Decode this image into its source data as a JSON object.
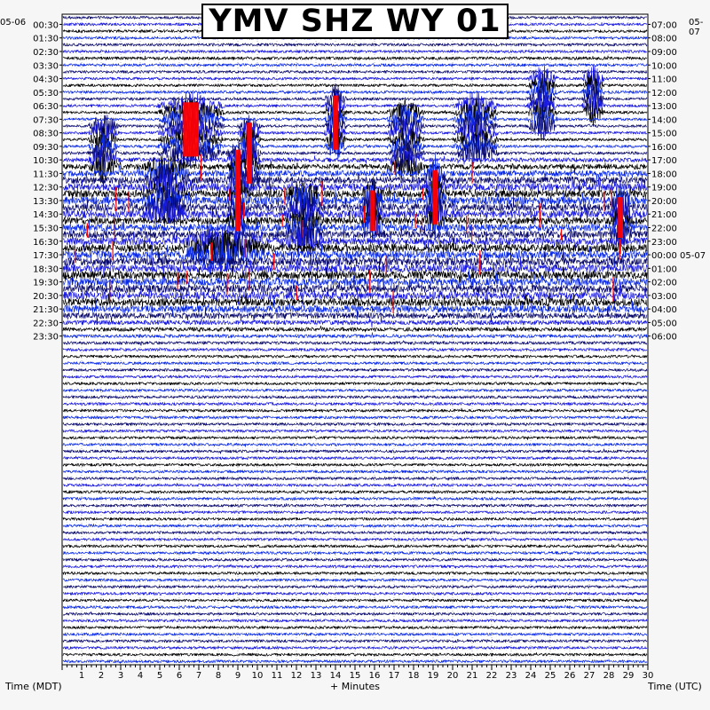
{
  "title": "YMV SHZ WY 01",
  "left_date_label": "05-06",
  "right_date_label": "05-07",
  "left_axis_label": "Time (MDT)",
  "right_axis_label": "Time (UTC)",
  "x_axis_label": "+ Minutes",
  "colors": {
    "trace_colors": [
      "#0b0b6e",
      "#1a1ae0",
      "#000000",
      "#0a2ae8"
    ],
    "clip": "#ff0000",
    "grid": "#000000",
    "background": "#ffffff"
  },
  "chart_data": {
    "type": "line",
    "title": "YMV SHZ WY 01",
    "xlabel": "+ Minutes",
    "xlim": [
      0,
      30
    ],
    "x_ticks": [
      1,
      2,
      3,
      4,
      5,
      6,
      7,
      8,
      9,
      10,
      11,
      12,
      13,
      14,
      15,
      16,
      17,
      18,
      19,
      20,
      21,
      22,
      23,
      24,
      25,
      26,
      27,
      28,
      29,
      30
    ],
    "rows_per_hour": 2,
    "left_tick_labels": [
      "00:30",
      "01:30",
      "02:30",
      "03:30",
      "04:30",
      "05:30",
      "06:30",
      "07:30",
      "08:30",
      "09:30",
      "10:30",
      "11:30",
      "12:30",
      "13:30",
      "14:30",
      "15:30",
      "16:30",
      "17:30",
      "18:30",
      "19:30",
      "20:30",
      "21:30",
      "22:30",
      "23:30"
    ],
    "right_tick_labels": [
      "07:00",
      "08:00",
      "09:00",
      "10:00",
      "11:00",
      "12:00",
      "13:00",
      "14:00",
      "15:00",
      "16:00",
      "17:00",
      "18:00",
      "19:00",
      "20:00",
      "21:00",
      "22:00",
      "23:00",
      "00:00 05-07",
      "01:00",
      "02:00",
      "03:00",
      "04:00",
      "05:00",
      "06:00"
    ],
    "row_activity": [
      0.1,
      0.1,
      0.1,
      0.1,
      0.1,
      0.1,
      0.15,
      0.12,
      0.1,
      0.1,
      0.1,
      0.12,
      0.1,
      0.1,
      0.1,
      0.1,
      0.1,
      0.1,
      0.1,
      0.1,
      0.15,
      0.35,
      0.5,
      0.6,
      0.75,
      0.85,
      0.8,
      0.85,
      0.9,
      0.85,
      0.75,
      0.8,
      0.8,
      0.85,
      0.9,
      0.9,
      0.9,
      0.9,
      0.9,
      0.9,
      0.9,
      0.9,
      0.85,
      0.8,
      0.6,
      0.4,
      0.3,
      0.2,
      0.15,
      0.12,
      0.1,
      0.1,
      0.1,
      0.1,
      0.1,
      0.1,
      0.12,
      0.12,
      0.1,
      0.1,
      0.1,
      0.1,
      0.1,
      0.1,
      0.1,
      0.1,
      0.1,
      0.1,
      0.1,
      0.1,
      0.1,
      0.1,
      0.1,
      0.1,
      0.1,
      0.1,
      0.1,
      0.1,
      0.1,
      0.1,
      0.1,
      0.1,
      0.1,
      0.1,
      0.1,
      0.1,
      0.1,
      0.1,
      0.1,
      0.1,
      0.1,
      0.1,
      0.1,
      0.1,
      0.1,
      0.1
    ],
    "events": [
      {
        "minute": 6.6,
        "start_row": 13,
        "end_row": 20,
        "clipped": true,
        "width_min": 0.9
      },
      {
        "minute": 24.6,
        "start_row": 9,
        "end_row": 16,
        "clipped": false,
        "width_min": 0.4
      },
      {
        "minute": 27.2,
        "start_row": 9,
        "end_row": 14,
        "clipped": false,
        "width_min": 0.3
      },
      {
        "minute": 14.0,
        "start_row": 12,
        "end_row": 19,
        "clipped": true,
        "width_min": 0.3
      },
      {
        "minute": 9.6,
        "start_row": 16,
        "end_row": 24,
        "clipped": true,
        "width_min": 0.3
      },
      {
        "minute": 9.0,
        "start_row": 20,
        "end_row": 31,
        "clipped": true,
        "width_min": 0.3
      },
      {
        "minute": 19.1,
        "start_row": 23,
        "end_row": 30,
        "clipped": true,
        "width_min": 0.3
      },
      {
        "minute": 15.9,
        "start_row": 26,
        "end_row": 31,
        "clipped": true,
        "width_min": 0.3
      },
      {
        "minute": 28.6,
        "start_row": 27,
        "end_row": 32,
        "clipped": true,
        "width_min": 0.3
      },
      {
        "minute": 5.3,
        "start_row": 22,
        "end_row": 29,
        "clipped": false,
        "width_min": 0.6
      },
      {
        "minute": 8.3,
        "start_row": 33,
        "end_row": 35,
        "clipped": false,
        "width_min": 1.2
      },
      {
        "minute": 2.1,
        "start_row": 16,
        "end_row": 22,
        "clipped": false,
        "width_min": 0.4
      },
      {
        "minute": 17.6,
        "start_row": 14,
        "end_row": 22,
        "clipped": false,
        "width_min": 0.5
      },
      {
        "minute": 21.2,
        "start_row": 13,
        "end_row": 20,
        "clipped": false,
        "width_min": 0.6
      },
      {
        "minute": 12.4,
        "start_row": 26,
        "end_row": 33,
        "clipped": false,
        "width_min": 0.5
      }
    ]
  }
}
